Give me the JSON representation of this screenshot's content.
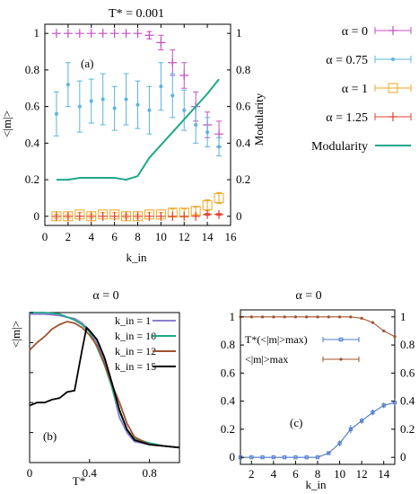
{
  "chart_data": [
    {
      "id": "a",
      "type": "scatter",
      "title": "T* = 0.001",
      "panel_label": "(a)",
      "xlabel": "k_in",
      "ylabel_left": "<|m|>",
      "ylabel_right": "Modularity",
      "xlim": [
        0,
        16
      ],
      "ylim": [
        -0.05,
        1.05
      ],
      "x_ticks": [
        "0",
        "2",
        "4",
        "6",
        "8",
        "10",
        "12",
        "14",
        "16"
      ],
      "y_ticks_left": [
        "0",
        "0.2",
        "0.4",
        "0.6",
        "0.8",
        "1"
      ],
      "y_ticks_right": [
        "0",
        "0.2",
        "0.4",
        "0.6",
        "0.8",
        "1"
      ],
      "grid": false,
      "legend_position": "right, outside",
      "series": [
        {
          "name": "α = 0",
          "color": "#c44fc4",
          "marker": "plus",
          "x": [
            1,
            2,
            3,
            4,
            5,
            6,
            7,
            8,
            9,
            10,
            11,
            12,
            13,
            14,
            15
          ],
          "y": [
            1,
            1,
            1,
            1,
            1,
            1,
            1,
            1,
            0.99,
            0.95,
            0.84,
            0.77,
            0.6,
            0.5,
            0.45
          ],
          "err": [
            0,
            0,
            0,
            0,
            0,
            0,
            0,
            0,
            0.02,
            0.04,
            0.07,
            0.07,
            0.08,
            0.07,
            0.07
          ]
        },
        {
          "name": "α = 0.75",
          "color": "#5ab4e0",
          "marker": "star",
          "x": [
            1,
            2,
            3,
            4,
            5,
            6,
            7,
            8,
            9,
            10,
            11,
            12,
            13,
            14,
            15
          ],
          "y": [
            0.56,
            0.72,
            0.6,
            0.63,
            0.64,
            0.59,
            0.64,
            0.61,
            0.58,
            0.71,
            0.66,
            0.58,
            0.5,
            0.46,
            0.38
          ],
          "err": [
            0.12,
            0.12,
            0.14,
            0.12,
            0.14,
            0.12,
            0.14,
            0.13,
            0.13,
            0.13,
            0.12,
            0.11,
            0.1,
            0.08,
            0.05
          ]
        },
        {
          "name": "α = 1",
          "color": "#f0a820",
          "marker": "square",
          "x": [
            1,
            2,
            3,
            4,
            5,
            6,
            7,
            8,
            9,
            10,
            11,
            12,
            13,
            14,
            15
          ],
          "y": [
            0,
            0,
            0.01,
            0,
            0.01,
            0.01,
            0,
            0,
            0.01,
            0.01,
            0.02,
            0.02,
            0.03,
            0.06,
            0.1
          ],
          "err": [
            0.01,
            0.01,
            0.01,
            0.01,
            0.01,
            0.01,
            0.01,
            0.01,
            0.01,
            0.01,
            0.02,
            0.02,
            0.02,
            0.03,
            0.03
          ]
        },
        {
          "name": "α = 1.25",
          "color": "#e04030",
          "marker": "plus",
          "x": [
            1,
            2,
            3,
            4,
            5,
            6,
            7,
            8,
            9,
            10,
            11,
            12,
            13,
            14,
            15
          ],
          "y": [
            0,
            0,
            0,
            0,
            0,
            0,
            0,
            0,
            0,
            0,
            0,
            0,
            0,
            0.01,
            0.01
          ],
          "err": [
            0,
            0,
            0,
            0,
            0,
            0,
            0,
            0,
            0,
            0,
            0,
            0,
            0,
            0.005,
            0.005
          ]
        },
        {
          "name": "Modularity",
          "color": "#1fa88a",
          "marker": "line",
          "x": [
            1,
            2,
            3,
            4,
            5,
            6,
            7,
            8,
            9,
            10,
            11,
            12,
            13,
            14,
            15
          ],
          "y": [
            0.2,
            0.2,
            0.21,
            0.21,
            0.21,
            0.21,
            0.2,
            0.22,
            0.32,
            0.39,
            0.46,
            0.53,
            0.6,
            0.67,
            0.75
          ]
        }
      ]
    },
    {
      "id": "b",
      "type": "line",
      "title": "α = 0",
      "panel_label": "(b)",
      "xlabel": "T*",
      "ylabel": "<|m|>",
      "xlim": [
        0,
        1
      ],
      "ylim": [
        0,
        1
      ],
      "x_ticks": [
        "0",
        "0.4",
        "0.8"
      ],
      "y_ticks": [
        "0",
        "0.2",
        "0.4",
        "0.6",
        "0.8",
        "1"
      ],
      "grid": false,
      "legend_position": "top-right",
      "series": [
        {
          "name": "k_in = 1",
          "color": "#8a7fd0",
          "x": [
            0,
            0.1,
            0.2,
            0.3,
            0.35,
            0.4,
            0.45,
            0.5,
            0.55,
            0.6,
            0.65,
            0.7,
            0.8,
            0.9,
            1.0
          ],
          "y": [
            0.99,
            0.99,
            0.98,
            0.96,
            0.93,
            0.88,
            0.8,
            0.68,
            0.5,
            0.3,
            0.2,
            0.14,
            0.12,
            0.11,
            0.1
          ]
        },
        {
          "name": "k_in = 10",
          "color": "#1fa88a",
          "x": [
            0,
            0.1,
            0.2,
            0.25,
            0.3,
            0.35,
            0.4,
            0.45,
            0.5,
            0.55,
            0.6,
            0.65,
            0.7,
            0.8,
            0.9,
            1.0
          ],
          "y": [
            1,
            1,
            0.99,
            0.97,
            0.95,
            0.92,
            0.87,
            0.77,
            0.65,
            0.5,
            0.34,
            0.22,
            0.16,
            0.13,
            0.11,
            0.1
          ]
        },
        {
          "name": "k_in = 12",
          "color": "#a0522d",
          "x": [
            0,
            0.05,
            0.1,
            0.15,
            0.2,
            0.25,
            0.3,
            0.35,
            0.4,
            0.45,
            0.5,
            0.55,
            0.6,
            0.65,
            0.7,
            0.8,
            0.9,
            1.0
          ],
          "y": [
            0.75,
            0.8,
            0.84,
            0.89,
            0.92,
            0.94,
            0.93,
            0.9,
            0.85,
            0.78,
            0.66,
            0.52,
            0.4,
            0.26,
            0.17,
            0.12,
            0.11,
            0.1
          ]
        },
        {
          "name": "k_in = 15",
          "color": "#000000",
          "x": [
            0,
            0.05,
            0.1,
            0.15,
            0.2,
            0.25,
            0.3,
            0.35,
            0.38,
            0.4,
            0.45,
            0.5,
            0.55,
            0.6,
            0.65,
            0.7,
            0.8,
            0.9,
            1.0
          ],
          "y": [
            0.38,
            0.4,
            0.4,
            0.42,
            0.43,
            0.47,
            0.48,
            0.75,
            0.9,
            0.88,
            0.82,
            0.7,
            0.53,
            0.35,
            0.22,
            0.15,
            0.12,
            0.11,
            0.1
          ]
        }
      ]
    },
    {
      "id": "c",
      "type": "line",
      "title": "α = 0",
      "panel_label": "(c)",
      "xlabel": "k_in",
      "xlim": [
        1,
        15
      ],
      "ylim": [
        -0.05,
        1.05
      ],
      "x_ticks": [
        "2",
        "4",
        "6",
        "8",
        "10",
        "12",
        "14"
      ],
      "y_ticks_left": [
        "0",
        "0.2",
        "0.4",
        "0.6",
        "0.8",
        "1"
      ],
      "y_ticks_right": [
        "0",
        "0.2",
        "0.4",
        "0.6",
        "0.8",
        "1"
      ],
      "grid": false,
      "legend_position": "center-left",
      "series": [
        {
          "name": "T*(<|m|>max)",
          "color": "#4a78d0",
          "marker": "square",
          "axis": "left",
          "x": [
            1,
            2,
            3,
            4,
            5,
            6,
            7,
            8,
            9,
            10,
            11,
            12,
            13,
            14,
            15
          ],
          "y": [
            0,
            0,
            0,
            0,
            0,
            0,
            0,
            0,
            0.03,
            0.1,
            0.2,
            0.26,
            0.32,
            0.37,
            0.39
          ],
          "err": [
            0,
            0,
            0,
            0,
            0,
            0,
            0,
            0,
            0.01,
            0.02,
            0.03,
            0.02,
            0.02,
            0.02,
            0.02
          ]
        },
        {
          "name": "<|m|>max",
          "color": "#a0522d",
          "marker": "dot",
          "axis": "right",
          "x": [
            1,
            2,
            3,
            4,
            5,
            6,
            7,
            8,
            9,
            10,
            11,
            12,
            13,
            14,
            15
          ],
          "y": [
            1,
            1,
            1,
            1,
            1,
            1,
            1,
            1,
            1,
            1,
            1,
            0.99,
            0.96,
            0.9,
            0.86
          ]
        }
      ]
    }
  ]
}
